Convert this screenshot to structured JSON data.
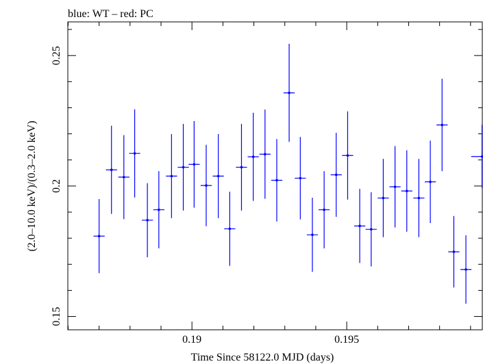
{
  "chart_data": {
    "type": "scatter",
    "title": "blue: WT – red: PC",
    "xlabel": "Time Since 58122.0 MJD (days)",
    "ylabel": "(2.0–10.0 keV)/(0.3–2.0 keV)",
    "xlim": [
      0.18599,
      0.19938
    ],
    "ylim": [
      0.1449,
      0.2629
    ],
    "xticks": [
      {
        "value": 0.19,
        "label": "0.19"
      },
      {
        "value": 0.195,
        "label": "0.195"
      }
    ],
    "yticks": [
      {
        "value": 0.15,
        "label": "0.15"
      },
      {
        "value": 0.2,
        "label": "0.2"
      },
      {
        "value": 0.25,
        "label": "0.25"
      }
    ],
    "series": [
      {
        "color": "#0000ff",
        "points": [
          {
            "x": 0.187,
            "xerr": 0.00018,
            "y": 0.1808,
            "yerr": 0.0142
          },
          {
            "x": 0.1874,
            "xerr": 0.00018,
            "y": 0.2062,
            "yerr": 0.0169
          },
          {
            "x": 0.1878,
            "xerr": 0.00018,
            "y": 0.2034,
            "yerr": 0.0161
          },
          {
            "x": 0.18815,
            "xerr": 0.00018,
            "y": 0.2125,
            "yerr": 0.0169
          },
          {
            "x": 0.18856,
            "xerr": 0.00018,
            "y": 0.1869,
            "yerr": 0.0142
          },
          {
            "x": 0.18893,
            "xerr": 0.00018,
            "y": 0.1909,
            "yerr": 0.0148
          },
          {
            "x": 0.18934,
            "xerr": 0.00018,
            "y": 0.2038,
            "yerr": 0.0161
          },
          {
            "x": 0.18972,
            "xerr": 0.00018,
            "y": 0.2072,
            "yerr": 0.0166
          },
          {
            "x": 0.19007,
            "xerr": 0.00018,
            "y": 0.2083,
            "yerr": 0.0166
          },
          {
            "x": 0.19046,
            "xerr": 0.00018,
            "y": 0.2002,
            "yerr": 0.0156
          },
          {
            "x": 0.19085,
            "xerr": 0.00018,
            "y": 0.2038,
            "yerr": 0.0161
          },
          {
            "x": 0.19122,
            "xerr": 0.00018,
            "y": 0.1836,
            "yerr": 0.0142
          },
          {
            "x": 0.1916,
            "xerr": 0.00018,
            "y": 0.2072,
            "yerr": 0.0166
          },
          {
            "x": 0.19198,
            "xerr": 0.00018,
            "y": 0.2112,
            "yerr": 0.0169
          },
          {
            "x": 0.19236,
            "xerr": 0.00018,
            "y": 0.2122,
            "yerr": 0.0171
          },
          {
            "x": 0.19274,
            "xerr": 0.00018,
            "y": 0.2022,
            "yerr": 0.0158
          },
          {
            "x": 0.19314,
            "xerr": 0.00018,
            "y": 0.2357,
            "yerr": 0.0188
          },
          {
            "x": 0.1935,
            "xerr": 0.00018,
            "y": 0.203,
            "yerr": 0.0158
          },
          {
            "x": 0.19389,
            "xerr": 0.00018,
            "y": 0.1813,
            "yerr": 0.0142
          },
          {
            "x": 0.19427,
            "xerr": 0.00018,
            "y": 0.1909,
            "yerr": 0.0148
          },
          {
            "x": 0.19466,
            "xerr": 0.00018,
            "y": 0.2043,
            "yerr": 0.0161
          },
          {
            "x": 0.19503,
            "xerr": 0.00018,
            "y": 0.2117,
            "yerr": 0.0169
          },
          {
            "x": 0.19542,
            "xerr": 0.00018,
            "y": 0.1847,
            "yerr": 0.0142
          },
          {
            "x": 0.19579,
            "xerr": 0.00018,
            "y": 0.1834,
            "yerr": 0.0142
          },
          {
            "x": 0.19618,
            "xerr": 0.00018,
            "y": 0.1954,
            "yerr": 0.015
          },
          {
            "x": 0.19656,
            "xerr": 0.00018,
            "y": 0.1997,
            "yerr": 0.0156
          },
          {
            "x": 0.19694,
            "xerr": 0.00018,
            "y": 0.1981,
            "yerr": 0.0156
          },
          {
            "x": 0.19733,
            "xerr": 0.00018,
            "y": 0.1954,
            "yerr": 0.015
          },
          {
            "x": 0.1977,
            "xerr": 0.00018,
            "y": 0.2016,
            "yerr": 0.0158
          },
          {
            "x": 0.19808,
            "xerr": 0.00018,
            "y": 0.2234,
            "yerr": 0.0177
          },
          {
            "x": 0.19846,
            "xerr": 0.00018,
            "y": 0.1748,
            "yerr": 0.0137
          },
          {
            "x": 0.19885,
            "xerr": 0.00018,
            "y": 0.168,
            "yerr": 0.0131
          },
          {
            "x": 0.19937,
            "xerr": 0.00035,
            "y": 0.2113,
            "yerr": 0.0121
          }
        ]
      }
    ],
    "grid": false,
    "legend": "none"
  }
}
